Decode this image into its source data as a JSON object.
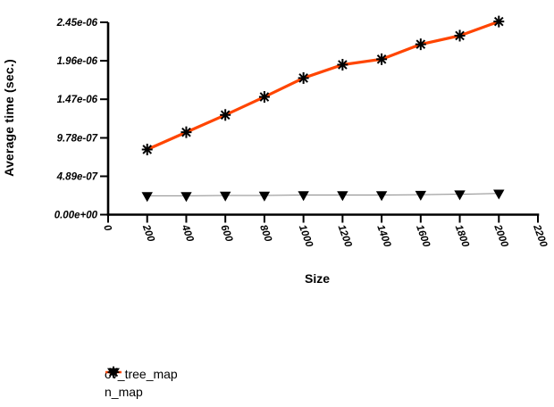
{
  "chart_data": {
    "type": "line",
    "title": "",
    "xlabel": "Size",
    "ylabel": "Average time (sec.)",
    "xlim": [
      0,
      2200
    ],
    "ylim": [
      0,
      2.45e-06
    ],
    "grid": false,
    "legend_position": "bottom-left",
    "x_ticks": [
      {
        "value": 0,
        "label": "0"
      },
      {
        "value": 200,
        "label": "200"
      },
      {
        "value": 400,
        "label": "400"
      },
      {
        "value": 600,
        "label": "600"
      },
      {
        "value": 800,
        "label": "800"
      },
      {
        "value": 1000,
        "label": "1000"
      },
      {
        "value": 1200,
        "label": "1200"
      },
      {
        "value": 1400,
        "label": "1400"
      },
      {
        "value": 1600,
        "label": "1600"
      },
      {
        "value": 1800,
        "label": "1800"
      },
      {
        "value": 2000,
        "label": "2000"
      },
      {
        "value": 2200,
        "label": "2200"
      }
    ],
    "y_ticks": [
      {
        "value": 0,
        "label": "0.00e+00"
      },
      {
        "value": 4.89e-07,
        "label": "4.89e-07"
      },
      {
        "value": 9.78e-07,
        "label": "9.78e-07"
      },
      {
        "value": 1.47e-06,
        "label": "1.47e-06"
      },
      {
        "value": 1.96e-06,
        "label": "1.96e-06"
      },
      {
        "value": 2.45e-06,
        "label": "2.45e-06"
      }
    ],
    "x": [
      200,
      400,
      600,
      800,
      1000,
      1200,
      1400,
      1600,
      1800,
      2000
    ],
    "series": [
      {
        "name": "ov_tree_map",
        "marker": "asterisk",
        "color": "#ff4500",
        "marker_color": "#000000",
        "line_width": 3.2,
        "values": [
          8.3e-07,
          1.05e-06,
          1.27e-06,
          1.5e-06,
          1.74e-06,
          1.91e-06,
          1.98e-06,
          2.17e-06,
          2.28e-06,
          2.46e-06
        ]
      },
      {
        "name": "n_map",
        "marker": "triangle-down",
        "color": "#8a8a8a",
        "marker_color": "#000000",
        "line_width": 1,
        "values": [
          2.4e-07,
          2.4e-07,
          2.45e-07,
          2.45e-07,
          2.5e-07,
          2.5e-07,
          2.5e-07,
          2.55e-07,
          2.6e-07,
          2.7e-07
        ]
      }
    ],
    "axis_color": "#000000",
    "tick_label_style": "bold-italic"
  }
}
